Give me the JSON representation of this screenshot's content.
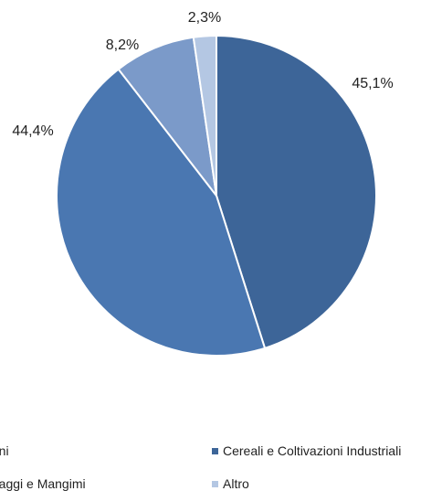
{
  "chart_data": {
    "type": "pie",
    "title": "",
    "slices": [
      {
        "label": "Cereali e Coltivazioni Industriali",
        "value": 45.1,
        "display": "45,1%",
        "color": "#3d6598"
      },
      {
        "label": "",
        "value": 44.4,
        "display": "44,4%",
        "color": "#4a77b1"
      },
      {
        "label": "",
        "value": 8.2,
        "display": "8,2%",
        "color": "#7b9ac9"
      },
      {
        "label": "Altro",
        "value": 2.3,
        "display": "2,3%",
        "color": "#b4c7e3"
      }
    ],
    "legend": {
      "position": "bottom",
      "items": [
        {
          "text": "rni",
          "color": "#4a77b1"
        },
        {
          "text": "Cereali e Coltivazioni Industriali",
          "color": "#3d6598"
        },
        {
          "text": "raggi e Mangimi",
          "color": "#7b9ac9"
        },
        {
          "text": "Altro",
          "color": "#b4c7e3"
        }
      ]
    }
  }
}
